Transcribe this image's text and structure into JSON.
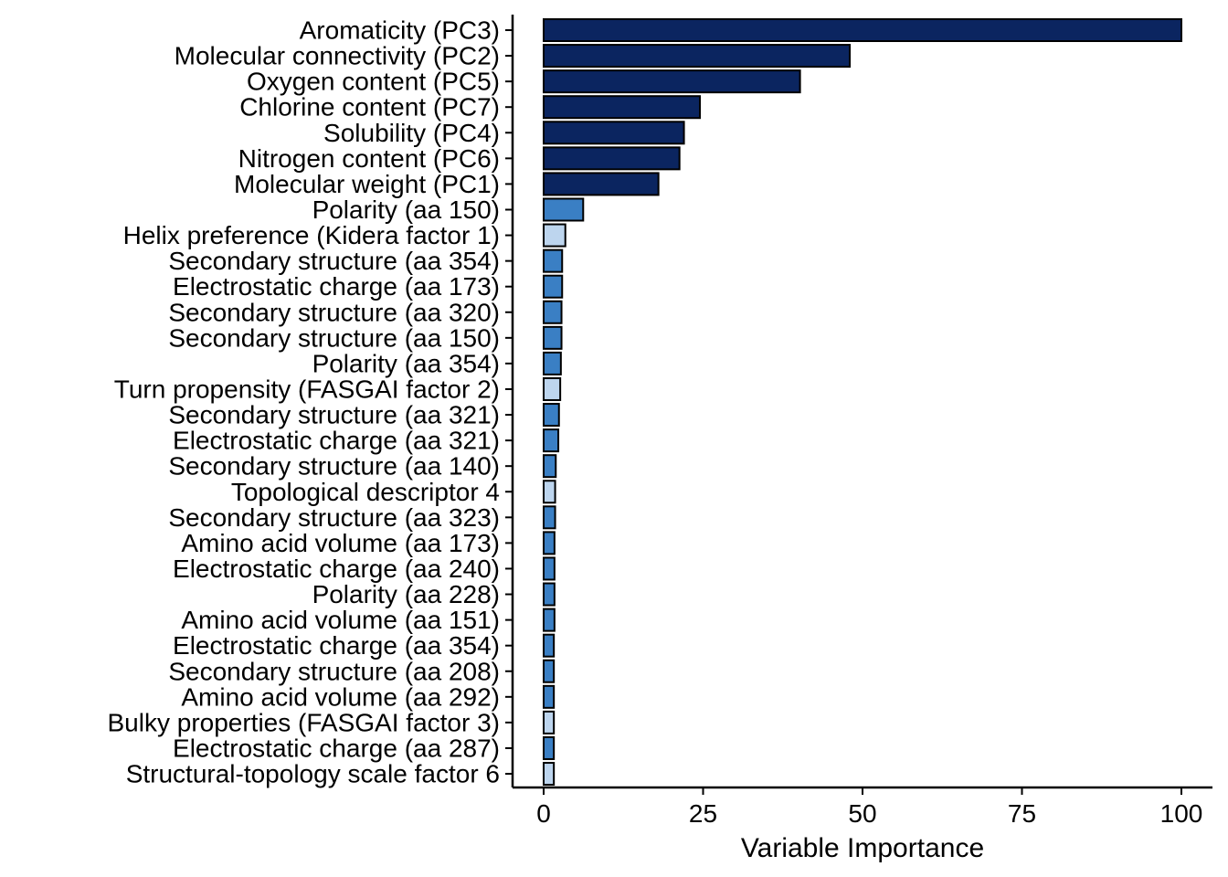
{
  "colors": {
    "physicochemical": "#0b2560",
    "amino_acid_property": "#3a7fc4",
    "scale_factor": "#bdd5ee",
    "edge": "#000000",
    "axis": "#000000",
    "background": "#ffffff"
  },
  "chart_data": {
    "type": "bar",
    "orientation": "horizontal",
    "title": "",
    "xlabel": "Variable Importance",
    "ylabel": "",
    "xlim": [
      0,
      100
    ],
    "xticks": [
      0,
      25,
      50,
      75,
      100
    ],
    "grid": false,
    "legend": "none",
    "categories": [
      "Aromaticity (PC3)",
      "Molecular connectivity (PC2)",
      "Oxygen content (PC5)",
      "Chlorine content (PC7)",
      "Solubility (PC4)",
      "Nitrogen content (PC6)",
      "Molecular weight (PC1)",
      "Polarity (aa 150)",
      "Helix preference (Kidera factor 1)",
      "Secondary structure (aa 354)",
      "Electrostatic charge (aa 173)",
      "Secondary structure (aa 320)",
      "Secondary structure (aa 150)",
      "Polarity (aa 354)",
      "Turn propensity (FASGAI factor 2)",
      "Secondary structure (aa 321)",
      "Electrostatic charge (aa 321)",
      "Secondary structure (aa 140)",
      "Topological descriptor 4",
      "Secondary structure (aa 323)",
      "Amino acid volume (aa 173)",
      "Electrostatic charge (aa 240)",
      "Polarity (aa 228)",
      "Amino acid volume (aa 151)",
      "Electrostatic charge (aa 354)",
      "Secondary structure (aa 208)",
      "Amino acid volume (aa 292)",
      "Bulky properties (FASGAI factor 3)",
      "Electrostatic charge (aa 287)",
      "Structural-topology scale factor 6"
    ],
    "values": [
      100,
      48,
      40.2,
      24.5,
      22,
      21.3,
      18,
      6.2,
      3.4,
      2.9,
      2.9,
      2.8,
      2.8,
      2.7,
      2.6,
      2.4,
      2.3,
      1.9,
      1.8,
      1.8,
      1.7,
      1.7,
      1.7,
      1.7,
      1.6,
      1.6,
      1.6,
      1.6,
      1.6,
      1.6
    ],
    "groups": [
      "physicochemical",
      "physicochemical",
      "physicochemical",
      "physicochemical",
      "physicochemical",
      "physicochemical",
      "physicochemical",
      "amino_acid_property",
      "scale_factor",
      "amino_acid_property",
      "amino_acid_property",
      "amino_acid_property",
      "amino_acid_property",
      "amino_acid_property",
      "scale_factor",
      "amino_acid_property",
      "amino_acid_property",
      "amino_acid_property",
      "scale_factor",
      "amino_acid_property",
      "amino_acid_property",
      "amino_acid_property",
      "amino_acid_property",
      "amino_acid_property",
      "amino_acid_property",
      "amino_acid_property",
      "amino_acid_property",
      "scale_factor",
      "amino_acid_property",
      "scale_factor"
    ]
  }
}
